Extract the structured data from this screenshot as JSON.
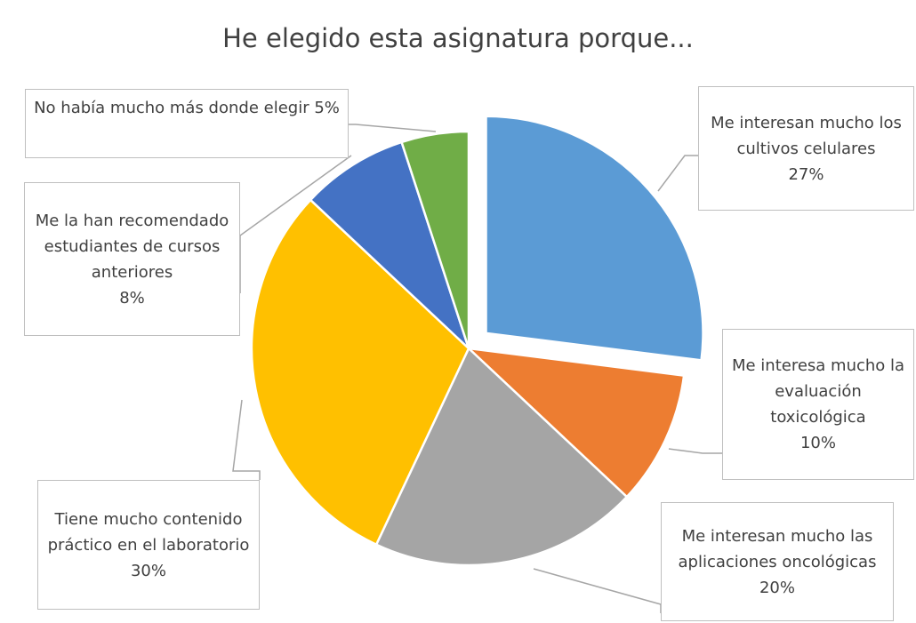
{
  "chart_data": {
    "type": "pie",
    "title": "He elegido esta asignatura porque...",
    "categories": [
      "Me interesan mucho los cultivos celulares",
      "Me interesa mucho la evaluación toxicológica",
      "Me interesan mucho las aplicaciones oncológicas",
      "Tiene mucho contenido práctico en el laboratorio",
      "Me la han recomendado estudiantes de cursos anteriores",
      "No había mucho más donde elegir"
    ],
    "values": [
      27,
      10,
      20,
      30,
      8,
      5
    ],
    "value_labels": [
      "27%",
      "10%",
      "20%",
      "30%",
      "8%",
      "5%"
    ],
    "colors": [
      "#5b9bd5",
      "#ed7d31",
      "#a5a5a5",
      "#ffc000",
      "#4472c4",
      "#70ad47"
    ]
  }
}
